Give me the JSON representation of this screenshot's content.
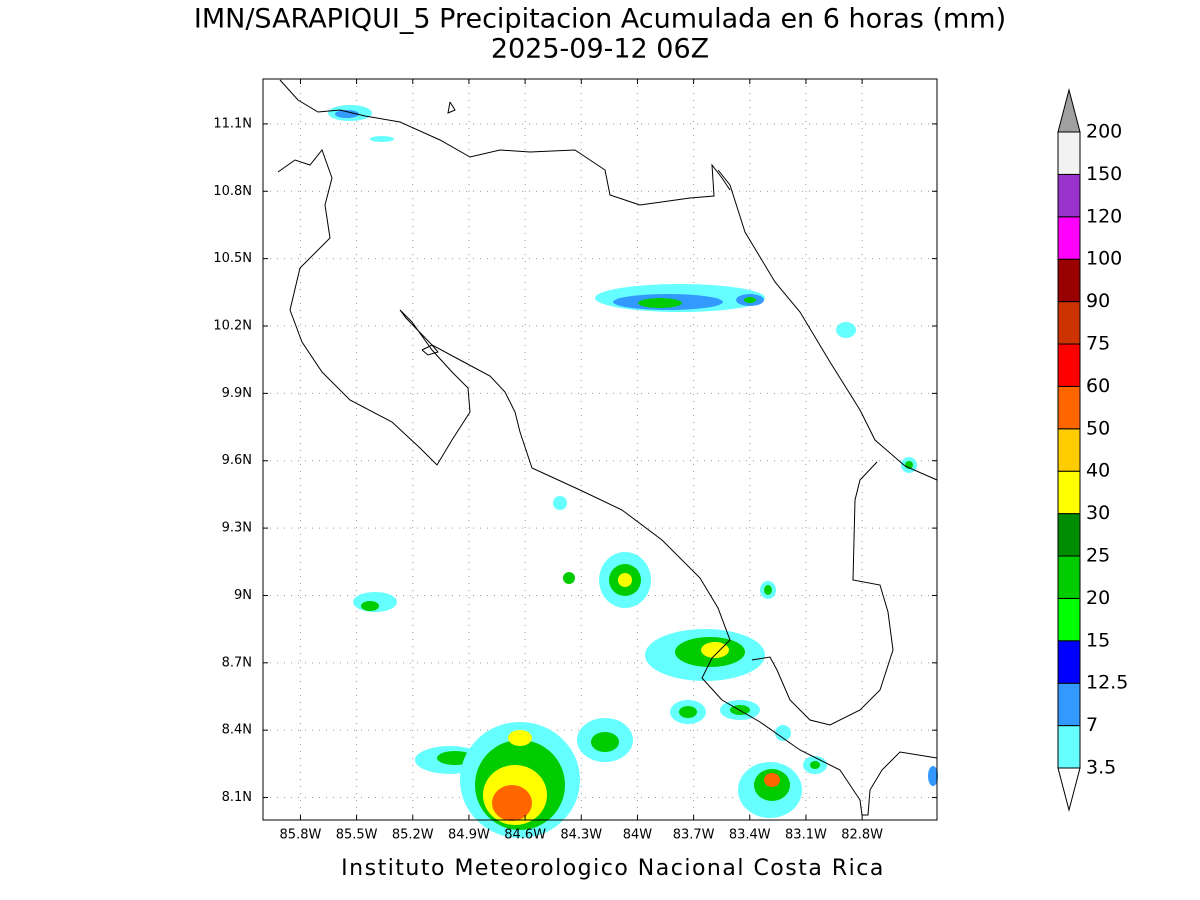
{
  "title": "IMN/SARAPIQUI_5 Precipitacion Acumulada en 6 horas (mm)",
  "subtitle": "2025-09-12 06Z",
  "footer": "Instituto Meteorologico Nacional Costa Rica",
  "map": {
    "xlim": [
      -86.0,
      -82.4
    ],
    "ylim": [
      8.0,
      11.3
    ],
    "xticks": [
      {
        "value": -85.8,
        "label": "85.8W"
      },
      {
        "value": -85.5,
        "label": "85.5W"
      },
      {
        "value": -85.2,
        "label": "85.2W"
      },
      {
        "value": -84.9,
        "label": "84.9W"
      },
      {
        "value": -84.6,
        "label": "84.6W"
      },
      {
        "value": -84.3,
        "label": "84.3W"
      },
      {
        "value": -84.0,
        "label": "84W"
      },
      {
        "value": -83.7,
        "label": "83.7W"
      },
      {
        "value": -83.4,
        "label": "83.4W"
      },
      {
        "value": -83.1,
        "label": "83.1W"
      },
      {
        "value": -82.8,
        "label": "82.8W"
      }
    ],
    "yticks": [
      {
        "value": 8.1,
        "label": "8.1N"
      },
      {
        "value": 8.4,
        "label": "8.4N"
      },
      {
        "value": 8.7,
        "label": "8.7N"
      },
      {
        "value": 9.0,
        "label": "9N"
      },
      {
        "value": 9.3,
        "label": "9.3N"
      },
      {
        "value": 9.6,
        "label": "9.6N"
      },
      {
        "value": 9.9,
        "label": "9.9N"
      },
      {
        "value": 10.2,
        "label": "10.2N"
      },
      {
        "value": 10.5,
        "label": "10.5N"
      },
      {
        "value": 10.8,
        "label": "10.8N"
      },
      {
        "value": 11.1,
        "label": "11.1N"
      }
    ],
    "grid": true
  },
  "colorbar": {
    "levels": [
      3.5,
      7,
      12.5,
      15,
      20,
      25,
      30,
      40,
      50,
      60,
      75,
      90,
      100,
      120,
      150,
      200
    ],
    "colors": [
      "#66ffff",
      "#3399ff",
      "#0000ff",
      "#00ff00",
      "#00cc00",
      "#008c00",
      "#ffff00",
      "#ffcc00",
      "#ff6600",
      "#ff0000",
      "#cc3300",
      "#990000",
      "#ff00ff",
      "#9933cc",
      "#f2f2f2"
    ],
    "under_color": "#ffffff",
    "over_color": "#a0a0a0"
  }
}
